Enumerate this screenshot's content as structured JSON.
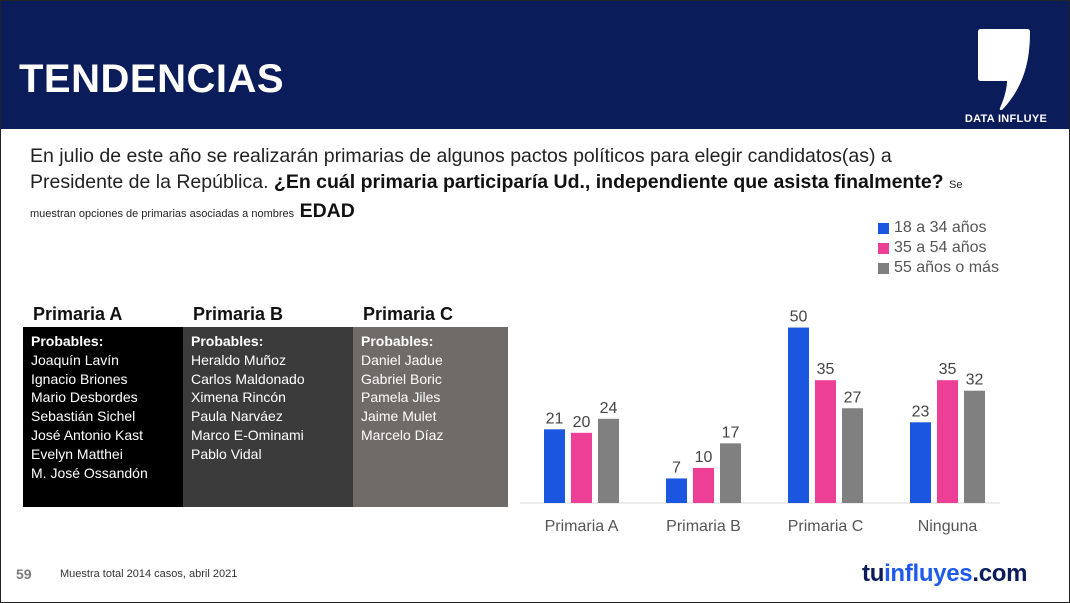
{
  "header": {
    "title": "TENDENCIAS",
    "logo_text": "DATA INFLUYE"
  },
  "question": {
    "intro": "En julio de este año se realizarán primarias de algunos pactos políticos para elegir candidatos(as) a Presidente de la República.",
    "bold": "¿En cuál primaria participaría Ud., independiente que asista finalmente?",
    "small": "Se muestran opciones de primarias asociadas a nombres",
    "tag": "EDAD"
  },
  "primaries": [
    {
      "title": "Primaria A",
      "probables_label": "Probables:",
      "names": [
        "Joaquín Lavín",
        "Ignacio Briones",
        "Mario Desbordes",
        "Sebastián Sichel",
        "José Antonio Kast",
        "Evelyn Matthei",
        "M. José Ossandón"
      ],
      "color": "#000000"
    },
    {
      "title": "Primaria B",
      "probables_label": "Probables:",
      "names": [
        "Heraldo Muñoz",
        "Carlos Maldonado",
        "Ximena Rincón",
        "Paula Narváez",
        "Marco E-Ominami",
        "Pablo Vidal"
      ],
      "color": "#3b3b3b"
    },
    {
      "title": "Primaria C",
      "probables_label": "Probables:",
      "names": [
        "Daniel Jadue",
        "Gabriel Boric",
        "Pamela Jiles",
        "Jaime Mulet",
        "Marcelo Díaz"
      ],
      "color": "#6f6b69"
    }
  ],
  "chart_data": {
    "type": "bar",
    "categories": [
      "Primaria A",
      "Primaria B",
      "Primaria C",
      "Ninguna"
    ],
    "series": [
      {
        "name": "18 a 34 años",
        "values": [
          21,
          7,
          50,
          23
        ],
        "color": "#1a56e0"
      },
      {
        "name": "35 a 54 años",
        "values": [
          20,
          10,
          35,
          35
        ],
        "color": "#ee3f96"
      },
      {
        "name": "55 años o más",
        "values": [
          24,
          17,
          27,
          32
        ],
        "color": "#808080"
      }
    ],
    "ylim": [
      0,
      55
    ],
    "grid": false,
    "legend": "top-right"
  },
  "footer": {
    "page": "59",
    "note": "Muestra total 2014 casos,  abril 2021",
    "brand_a": "tu",
    "brand_b": "influyes",
    "brand_c": ".com"
  }
}
